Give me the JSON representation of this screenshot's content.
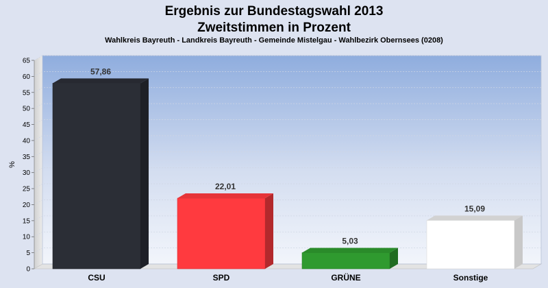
{
  "chart_data": {
    "type": "bar",
    "title": "Ergebnis zur Bundestagswahl 2013",
    "title_line2": "Zweitstimmen in Prozent",
    "subtitle": "Wahlkreis Bayreuth - Landkreis Bayreuth - Gemeinde Mistelgau - Wahlbezirk Obernsees (0208)",
    "ylabel": "%",
    "xlabel": "",
    "categories": [
      "CSU",
      "SPD",
      "GRÜNE",
      "Sonstige"
    ],
    "values": [
      57.86,
      22.01,
      5.03,
      15.09
    ],
    "value_labels": [
      "57,86",
      "22,01",
      "5,03",
      "15,09"
    ],
    "colors": [
      "#2b2e36",
      "#ff3a3f",
      "#2f9a2f",
      "#ffffff"
    ],
    "ylim": [
      0,
      65
    ],
    "yticks": [
      0,
      5,
      10,
      15,
      20,
      25,
      30,
      35,
      40,
      45,
      50,
      55,
      60,
      65
    ],
    "grid": true,
    "legend": "none"
  }
}
